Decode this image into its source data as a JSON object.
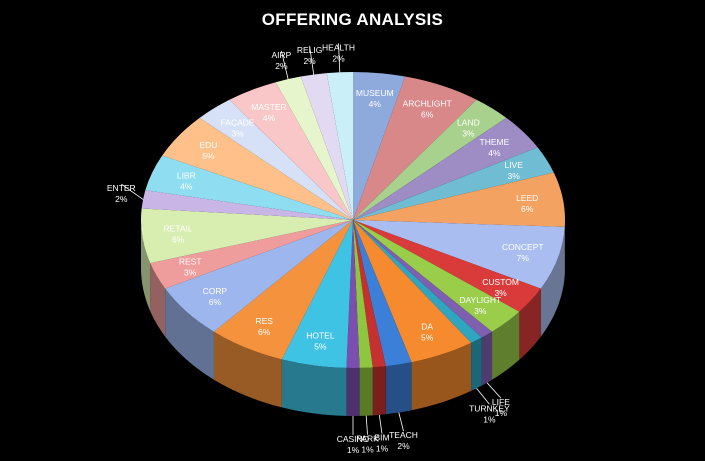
{
  "chart_data": {
    "type": "pie",
    "title": "OFFERING ANALYSIS",
    "slices": [
      {
        "label": "MUSEUM",
        "pct": "4%",
        "value": 4,
        "color": "#8EA9DB"
      },
      {
        "label": "ARCHLIGHT",
        "pct": "6%",
        "value": 6,
        "color": "#D9888A"
      },
      {
        "label": "LAND",
        "pct": "3%",
        "value": 3,
        "color": "#A9D18E"
      },
      {
        "label": "THEME",
        "pct": "4%",
        "value": 4,
        "color": "#9E8CC4"
      },
      {
        "label": "LIVE",
        "pct": "3%",
        "value": 3,
        "color": "#6FBCD3"
      },
      {
        "label": "LEED",
        "pct": "6%",
        "value": 6,
        "color": "#F4A261"
      },
      {
        "label": "CONCEPT",
        "pct": "7%",
        "value": 7,
        "color": "#A9BDF0"
      },
      {
        "label": "CUSTOM",
        "pct": "3%",
        "value": 3,
        "color": "#D93B3B"
      },
      {
        "label": "DAYLIGHT",
        "pct": "3%",
        "value": 3,
        "color": "#9ACD4A"
      },
      {
        "label": "LIFE",
        "pct": "1%",
        "value": 1,
        "color": "#7F5FAF"
      },
      {
        "label": "TURNKEY",
        "pct": "1%",
        "value": 1,
        "color": "#2FA5C0"
      },
      {
        "label": "DA",
        "pct": "5%",
        "value": 5,
        "color": "#F58A2E"
      },
      {
        "label": "TEACH",
        "pct": "2%",
        "value": 2,
        "color": "#3C7FD8"
      },
      {
        "label": "BIM",
        "pct": "1%",
        "value": 1,
        "color": "#C53030"
      },
      {
        "label": "PARK",
        "pct": "1%",
        "value": 1,
        "color": "#8FC640"
      },
      {
        "label": "CASINO",
        "pct": "1%",
        "value": 1,
        "color": "#7B4FB0"
      },
      {
        "label": "HOTEL",
        "pct": "5%",
        "value": 5,
        "color": "#3FC3E4"
      },
      {
        "label": "RES",
        "pct": "6%",
        "value": 6,
        "color": "#F5923E"
      },
      {
        "label": "CORP",
        "pct": "6%",
        "value": 6,
        "color": "#9DB6EE"
      },
      {
        "label": "REST",
        "pct": "3%",
        "value": 3,
        "color": "#EE9C9C"
      },
      {
        "label": "RETAIL",
        "pct": "6%",
        "value": 6,
        "color": "#D8EEB0"
      },
      {
        "label": "ENTER",
        "pct": "2%",
        "value": 2,
        "color": "#C9B6E6"
      },
      {
        "label": "LIBR",
        "pct": "4%",
        "value": 4,
        "color": "#8FDDF0"
      },
      {
        "label": "EDU",
        "pct": "5%",
        "value": 5,
        "color": "#FFC08A"
      },
      {
        "label": "FAÇADE",
        "pct": "3%",
        "value": 3,
        "color": "#D6E0F6"
      },
      {
        "label": "MASTER",
        "pct": "4%",
        "value": 4,
        "color": "#F9C7C7"
      },
      {
        "label": "AIRP",
        "pct": "2%",
        "value": 2,
        "color": "#E6F5CB"
      },
      {
        "label": "RELIG",
        "pct": "2%",
        "value": 2,
        "color": "#E2D9F3"
      },
      {
        "label": "HEALTH",
        "pct": "2%",
        "value": 2,
        "color": "#CBEFF8"
      }
    ],
    "legend": "none",
    "label_style": "category name and percentage"
  }
}
